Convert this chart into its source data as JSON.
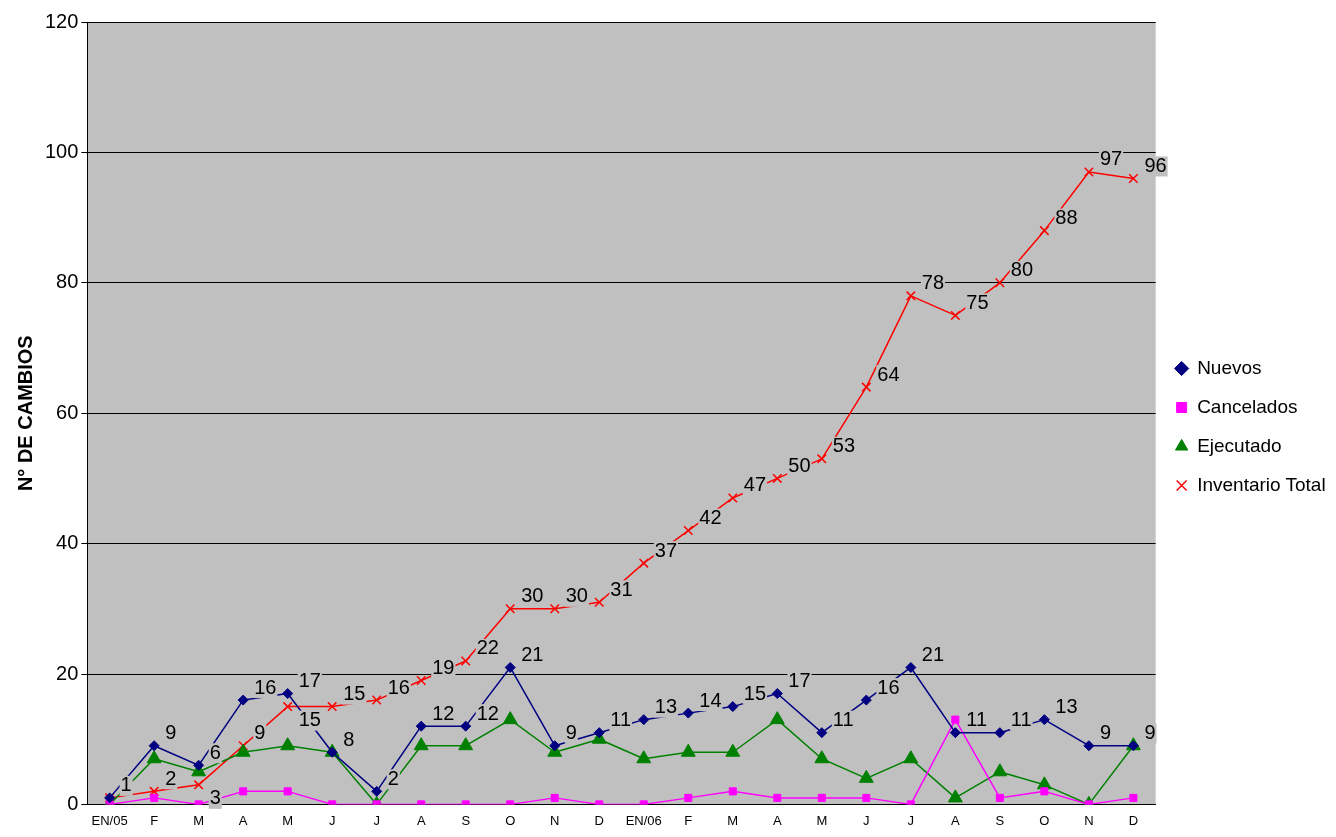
{
  "chart_data": {
    "type": "line",
    "ylabel": "N° DE CAMBIOS",
    "categories": [
      "EN/05",
      "F",
      "M",
      "A",
      "M",
      "J",
      "J",
      "A",
      "S",
      "O",
      "N",
      "D",
      "EN/06",
      "F",
      "M",
      "A",
      "M",
      "J",
      "J",
      "A",
      "S",
      "O",
      "N",
      "D"
    ],
    "ylim": [
      0,
      120
    ],
    "yticks": [
      0,
      20,
      40,
      60,
      80,
      100,
      120
    ],
    "grid": "y",
    "legend": "right",
    "series": [
      {
        "name": "Nuevos",
        "color": "#000080",
        "marker": "diamond",
        "values": [
          1,
          9,
          6,
          16,
          17,
          8,
          2,
          12,
          12,
          21,
          9,
          11,
          13,
          14,
          15,
          17,
          11,
          16,
          21,
          11,
          11,
          13,
          9,
          9
        ],
        "value_labels": [
          null,
          "9",
          "6",
          "16",
          "17",
          "8",
          "2",
          "12",
          "12",
          "21",
          "9",
          "11",
          "13",
          "14",
          "15",
          "17",
          "11",
          "16",
          "21",
          "11",
          "11",
          "13",
          "9",
          "9"
        ]
      },
      {
        "name": "Cancelados",
        "color": "#ff00ff",
        "marker": "square",
        "values": [
          0,
          1,
          0,
          2,
          2,
          0,
          0,
          0,
          0,
          0,
          1,
          0,
          0,
          1,
          2,
          1,
          1,
          1,
          0,
          13,
          1,
          2,
          0,
          1
        ]
      },
      {
        "name": "Ejecutado",
        "color": "#008000",
        "marker": "triangle",
        "values": [
          0,
          7,
          5,
          8,
          9,
          8,
          0,
          9,
          9,
          13,
          8,
          10,
          7,
          8,
          8,
          13,
          7,
          4,
          7,
          1,
          5,
          3,
          0,
          9
        ]
      },
      {
        "name": "Inventario Total",
        "color": "#ff0000",
        "marker": "cross",
        "values": [
          1,
          2,
          3,
          9,
          15,
          15,
          16,
          19,
          22,
          30,
          30,
          31,
          37,
          42,
          47,
          50,
          53,
          64,
          78,
          75,
          80,
          88,
          97,
          96
        ],
        "value_labels": [
          "1",
          "2",
          "3",
          "9",
          "15",
          "15",
          "16",
          "19",
          "22",
          "30",
          "30",
          "31",
          "37",
          "42",
          "47",
          "50",
          "53",
          "64",
          "78",
          "75",
          "80",
          "88",
          "97",
          "96"
        ]
      }
    ]
  }
}
